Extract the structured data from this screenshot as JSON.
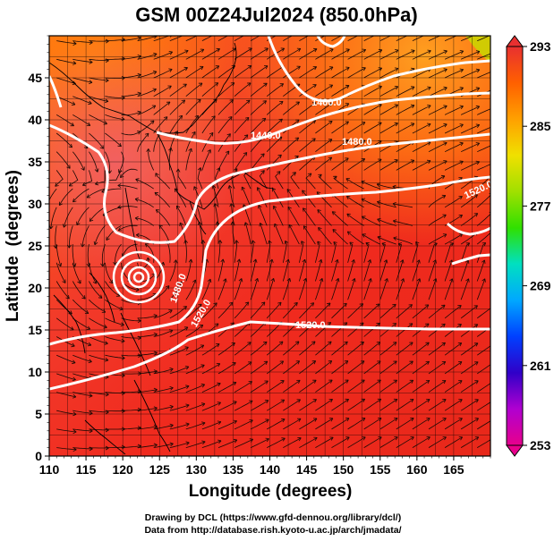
{
  "chart_data": {
    "type": "heatmap",
    "title": "GSM 00Z24Jul2024 (850.0hPa)",
    "xlabel": "Longitude (degrees)",
    "ylabel": "Latitude  (degrees)",
    "xlim": [
      110,
      170
    ],
    "ylim": [
      0,
      50
    ],
    "x_ticks": [
      "110",
      "115",
      "120",
      "125",
      "130",
      "135",
      "140",
      "145",
      "150",
      "155",
      "160",
      "165"
    ],
    "y_ticks": [
      "0",
      "5",
      "10",
      "15",
      "20",
      "25",
      "30",
      "35",
      "40",
      "45"
    ],
    "colorbar": {
      "min": 253,
      "max": 293,
      "ticks": [
        "293",
        "285",
        "277",
        "269",
        "261",
        "253"
      ],
      "colors": [
        "#e8008c",
        "#b000d0",
        "#3000c8",
        "#0040ff",
        "#00a8ff",
        "#00e0c0",
        "#30e000",
        "#a0e000",
        "#f0e000",
        "#ffa000",
        "#ff6000",
        "#e83030"
      ]
    },
    "contours": [
      {
        "label": "1400.0"
      },
      {
        "label": "1440.0"
      },
      {
        "label": "1480.0"
      },
      {
        "label": "1520.0"
      },
      {
        "label": "1480.0"
      },
      {
        "label": "1520.0"
      }
    ],
    "grid": true
  },
  "credits": {
    "line1": "Drawing by DCL (https://www.gfd-dennou.org/library/dcl/)",
    "line2": "Data from http://database.rish.kyoto-u.ac.jp/arch/jmadata/"
  }
}
